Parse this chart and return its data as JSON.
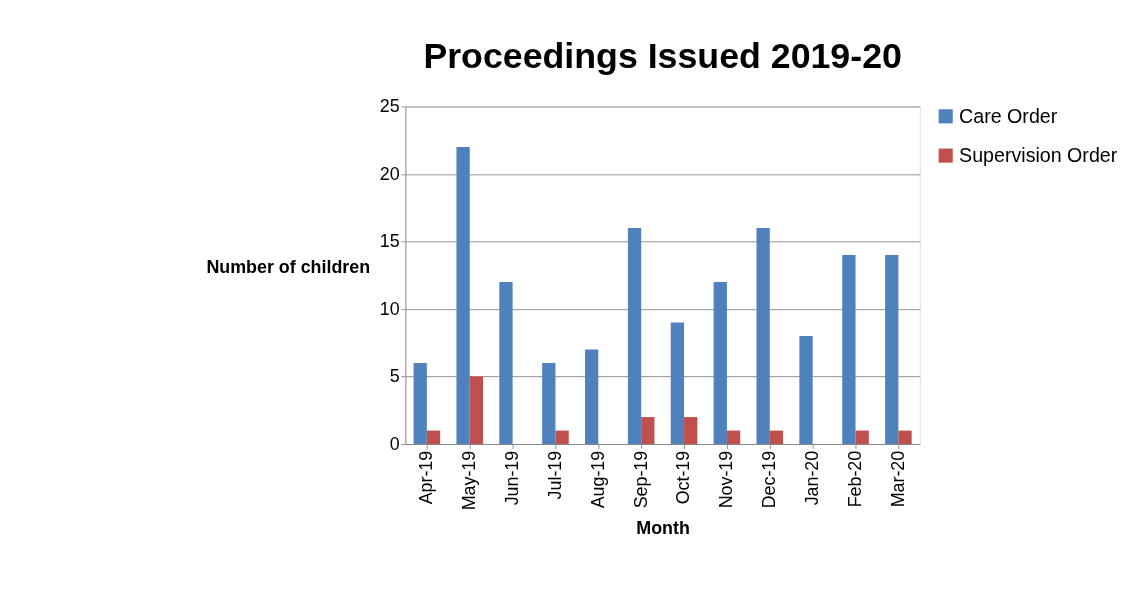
{
  "chart_data": {
    "type": "bar",
    "title": "Proceedings Issued 2019-20",
    "xlabel": "Month",
    "ylabel": "Number of children",
    "categories": [
      "Apr-19",
      "May-19",
      "Jun-19",
      "Jul-19",
      "Aug-19",
      "Sep-19",
      "Oct-19",
      "Nov-19",
      "Dec-19",
      "Jan-20",
      "Feb-20",
      "Mar-20"
    ],
    "series": [
      {
        "name": "Care Order",
        "color": "#4f81bd",
        "values": [
          6,
          22,
          12,
          6,
          7,
          16,
          9,
          12,
          16,
          8,
          14,
          14
        ]
      },
      {
        "name": "Supervision Order",
        "color": "#c0504d",
        "values": [
          1,
          5,
          0,
          1,
          0,
          2,
          2,
          1,
          1,
          0,
          1,
          1
        ]
      }
    ],
    "ylim": [
      0,
      25
    ],
    "yticks": [
      0,
      5,
      10,
      15,
      20,
      25
    ],
    "grid": "y",
    "legend": "right"
  }
}
